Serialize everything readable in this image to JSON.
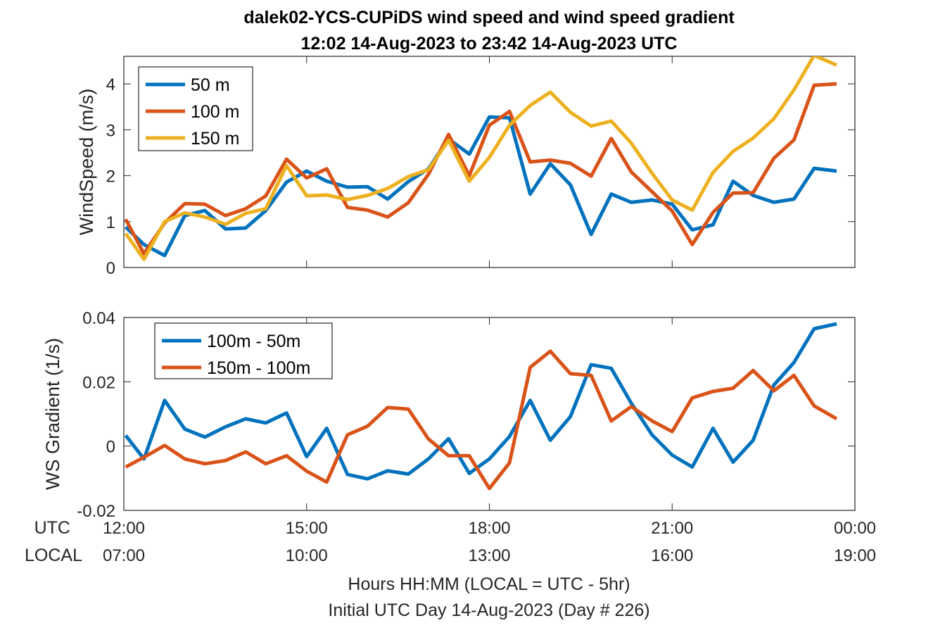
{
  "title_line1": "dalek02-YCS-CUPiDS  wind speed and wind speed gradient",
  "title_line2": "12:02 14-Aug-2023 to 23:42 14-Aug-2023  UTC",
  "x_axis": {
    "utc_label": "UTC",
    "local_label": "LOCAL",
    "utc_ticks": [
      "12:00",
      "15:00",
      "18:00",
      "21:00",
      "00:00"
    ],
    "local_ticks": [
      "07:00",
      "10:00",
      "13:00",
      "16:00",
      "19:00"
    ],
    "tick_hours": [
      12,
      15,
      18,
      21,
      24
    ],
    "range_hours": [
      12,
      24
    ],
    "note_line1": "Hours HH:MM  (LOCAL = UTC - 5hr)",
    "note_line2": "Initial UTC Day 14-Aug-2023 (Day # 226)"
  },
  "chart_data": [
    {
      "type": "line",
      "ylabel": "WindSpeed (m/s)",
      "ylim": [
        0,
        4.6
      ],
      "yticks": [
        0,
        1,
        2,
        3,
        4
      ],
      "ytick_labels": [
        "0",
        "1",
        "2",
        "3",
        "4"
      ],
      "legend_position": "top-left",
      "x_hours": [
        12.03,
        12.33,
        12.67,
        13.0,
        13.33,
        13.67,
        14.0,
        14.33,
        14.67,
        15.0,
        15.33,
        15.67,
        16.0,
        16.33,
        16.67,
        17.0,
        17.33,
        17.67,
        18.0,
        18.33,
        18.67,
        19.0,
        19.33,
        19.67,
        20.0,
        20.33,
        20.67,
        21.0,
        21.33,
        21.67,
        22.0,
        22.33,
        22.67,
        23.0,
        23.33,
        23.7
      ],
      "series": [
        {
          "name": "50 m",
          "color": "#0072BD",
          "values": [
            0.88,
            0.5,
            0.26,
            1.13,
            1.24,
            0.84,
            0.86,
            1.24,
            1.86,
            2.1,
            1.88,
            1.75,
            1.76,
            1.49,
            1.87,
            2.15,
            2.8,
            2.47,
            3.28,
            3.26,
            1.6,
            2.26,
            1.8,
            0.72,
            1.6,
            1.42,
            1.47,
            1.38,
            0.82,
            0.93,
            1.88,
            1.57,
            1.42,
            1.49,
            2.16,
            2.1
          ]
        },
        {
          "name": "100 m",
          "color": "#D95319",
          "values": [
            1.05,
            0.3,
            0.97,
            1.39,
            1.38,
            1.13,
            1.28,
            1.56,
            2.36,
            1.95,
            2.15,
            1.31,
            1.25,
            1.1,
            1.41,
            2.03,
            2.9,
            2.0,
            3.1,
            3.4,
            2.3,
            2.34,
            2.27,
            1.99,
            2.81,
            2.08,
            1.65,
            1.23,
            0.5,
            1.2,
            1.62,
            1.63,
            2.38,
            2.78,
            3.97,
            4.0
          ]
        },
        {
          "name": "150 m",
          "color": "#EDB120",
          "values": [
            0.74,
            0.18,
            1.0,
            1.19,
            1.1,
            0.94,
            1.18,
            1.28,
            2.22,
            1.56,
            1.58,
            1.48,
            1.57,
            1.72,
            1.98,
            2.13,
            2.77,
            1.88,
            2.4,
            3.1,
            3.53,
            3.82,
            3.38,
            3.08,
            3.19,
            2.71,
            2.05,
            1.47,
            1.25,
            2.07,
            2.53,
            2.82,
            3.24,
            3.87,
            4.62,
            4.41
          ]
        }
      ]
    },
    {
      "type": "line",
      "ylabel": "WS Gradient (1/s)",
      "ylim": [
        -0.02,
        0.04
      ],
      "yticks": [
        -0.02,
        0,
        0.02,
        0.04
      ],
      "ytick_labels": [
        "-0.02",
        "0",
        "0.02",
        "0.04"
      ],
      "legend_position": "top-left",
      "x_hours": [
        12.03,
        12.33,
        12.67,
        13.0,
        13.33,
        13.67,
        14.0,
        14.33,
        14.67,
        15.0,
        15.33,
        15.67,
        16.0,
        16.33,
        16.67,
        17.0,
        17.33,
        17.67,
        18.0,
        18.33,
        18.67,
        19.0,
        19.33,
        19.67,
        20.0,
        20.33,
        20.67,
        21.0,
        21.33,
        21.67,
        22.0,
        22.33,
        22.67,
        23.0,
        23.33,
        23.7
      ],
      "series": [
        {
          "name": "100m - 50m",
          "color": "#0072BD",
          "values": [
            0.0033,
            -0.004,
            0.0142,
            0.0053,
            0.0028,
            0.006,
            0.0085,
            0.0072,
            0.0103,
            -0.0033,
            0.0055,
            -0.0088,
            -0.0102,
            -0.0077,
            -0.0087,
            -0.004,
            0.0023,
            -0.0085,
            -0.004,
            0.003,
            0.0142,
            0.0018,
            0.0092,
            0.0253,
            0.0242,
            0.0133,
            0.0035,
            -0.0028,
            -0.0065,
            0.0055,
            -0.005,
            0.0018,
            0.019,
            0.026,
            0.0365,
            0.038
          ]
        },
        {
          "name": "150m - 100m",
          "color": "#D95319",
          "values": [
            -0.0065,
            -0.0035,
            0.0002,
            -0.004,
            -0.0055,
            -0.0045,
            -0.0018,
            -0.0055,
            -0.003,
            -0.0078,
            -0.0112,
            0.0035,
            0.0062,
            0.012,
            0.0115,
            0.0022,
            -0.003,
            -0.003,
            -0.0132,
            -0.0052,
            0.0245,
            0.0295,
            0.0225,
            0.022,
            0.0078,
            0.0123,
            0.0078,
            0.0045,
            0.015,
            0.017,
            0.018,
            0.0235,
            0.0172,
            0.022,
            0.0125,
            0.0085
          ]
        }
      ]
    }
  ]
}
